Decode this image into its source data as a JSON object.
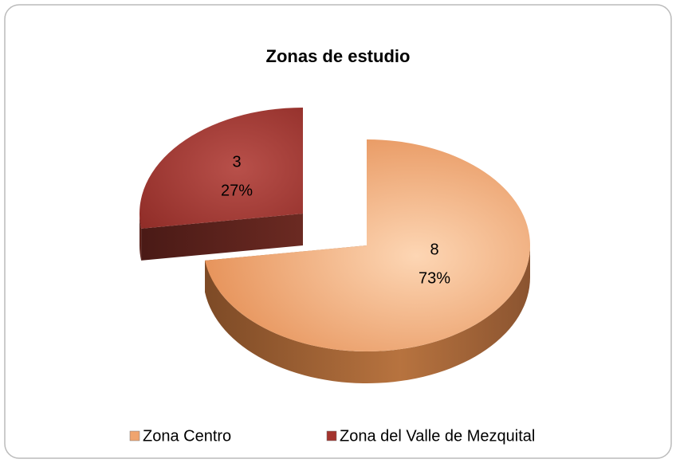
{
  "chart_data": {
    "type": "pie",
    "title": "Zonas de estudio",
    "categories": [
      "Zona Centro",
      "Zona del Valle de Mezquital"
    ],
    "values": [
      8,
      3
    ],
    "percentages": [
      73,
      27
    ],
    "percentage_labels": [
      "73%",
      "27%"
    ],
    "colors": [
      "#f0a46e",
      "#a3342e"
    ],
    "legend": "bottom"
  }
}
